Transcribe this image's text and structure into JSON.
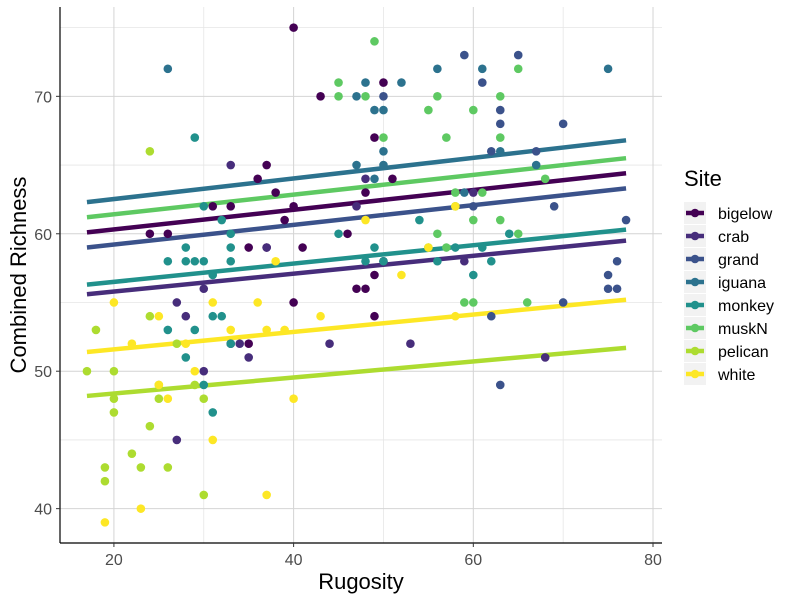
{
  "chart_data": {
    "type": "scatter",
    "title": "",
    "xlabel": "Rugosity",
    "ylabel": "Combined Richness",
    "xlim": [
      14,
      81
    ],
    "ylim": [
      37.5,
      76.5
    ],
    "xticks": [
      20,
      40,
      60,
      80
    ],
    "yticks": [
      40,
      50,
      60,
      70
    ],
    "grid": true,
    "legend": {
      "title": "Site",
      "position": "right"
    },
    "series": [
      {
        "name": "bigelow",
        "color": "#440154",
        "fit": {
          "x": [
            17,
            77
          ],
          "y": [
            60.1,
            64.4
          ]
        },
        "points": [
          [
            40,
            75
          ],
          [
            43,
            70
          ],
          [
            50,
            71
          ],
          [
            49,
            67
          ],
          [
            37,
            65
          ],
          [
            38,
            63
          ],
          [
            39,
            61
          ],
          [
            36,
            64
          ],
          [
            35,
            59
          ],
          [
            40,
            62
          ],
          [
            33,
            62
          ],
          [
            41,
            59
          ],
          [
            46,
            60
          ],
          [
            47,
            56
          ],
          [
            48,
            56
          ],
          [
            49,
            54
          ],
          [
            50,
            58
          ],
          [
            49,
            57
          ],
          [
            48,
            63
          ],
          [
            51,
            64
          ],
          [
            40,
            55
          ],
          [
            35,
            52
          ],
          [
            37,
            59
          ],
          [
            26,
            60
          ],
          [
            24,
            60
          ],
          [
            31,
            62
          ]
        ]
      },
      {
        "name": "crab",
        "color": "#472d7b",
        "fit": {
          "x": [
            17,
            77
          ],
          "y": [
            55.6,
            59.5
          ]
        },
        "points": [
          [
            27,
            45
          ],
          [
            27,
            55
          ],
          [
            28,
            54
          ],
          [
            30,
            50
          ],
          [
            30,
            56
          ],
          [
            33,
            52
          ],
          [
            34,
            52
          ],
          [
            35,
            51
          ],
          [
            37,
            59
          ],
          [
            33,
            65
          ],
          [
            44,
            52
          ],
          [
            47,
            62
          ],
          [
            48,
            64
          ],
          [
            53,
            52
          ],
          [
            59,
            58
          ],
          [
            60,
            63
          ],
          [
            68,
            51
          ]
        ]
      },
      {
        "name": "grand",
        "color": "#3b528b",
        "fit": {
          "x": [
            17,
            77
          ],
          "y": [
            59.0,
            63.3
          ]
        },
        "points": [
          [
            59,
            73
          ],
          [
            61,
            71
          ],
          [
            63,
            69
          ],
          [
            63,
            68
          ],
          [
            65,
            73
          ],
          [
            67,
            66
          ],
          [
            70,
            68
          ],
          [
            62,
            66
          ],
          [
            60,
            62
          ],
          [
            63,
            49
          ],
          [
            62,
            54
          ],
          [
            70,
            55
          ],
          [
            75,
            57
          ],
          [
            76,
            58
          ],
          [
            76,
            56
          ],
          [
            75,
            56
          ],
          [
            77,
            61
          ],
          [
            69,
            62
          ],
          [
            50,
            70
          ]
        ]
      },
      {
        "name": "iguana",
        "color": "#2c728e",
        "fit": {
          "x": [
            17,
            77
          ],
          "y": [
            62.3,
            66.8
          ]
        },
        "points": [
          [
            26,
            72
          ],
          [
            47,
            70
          ],
          [
            48,
            71
          ],
          [
            50,
            69
          ],
          [
            52,
            71
          ],
          [
            49,
            69
          ],
          [
            50,
            66
          ],
          [
            56,
            72
          ],
          [
            61,
            72
          ],
          [
            63,
            66
          ],
          [
            67,
            65
          ],
          [
            75,
            72
          ],
          [
            47,
            65
          ],
          [
            49,
            64
          ],
          [
            50,
            65
          ],
          [
            59,
            63
          ]
        ]
      },
      {
        "name": "monkey",
        "color": "#21918c",
        "fit": {
          "x": [
            17,
            77
          ],
          "y": [
            56.3,
            60.3
          ]
        },
        "points": [
          [
            29,
            67
          ],
          [
            26,
            53
          ],
          [
            26,
            58
          ],
          [
            28,
            59
          ],
          [
            28,
            58
          ],
          [
            29,
            58
          ],
          [
            30,
            58
          ],
          [
            28,
            51
          ],
          [
            29,
            53
          ],
          [
            30,
            49
          ],
          [
            31,
            47
          ],
          [
            31,
            54
          ],
          [
            32,
            54
          ],
          [
            33,
            60
          ],
          [
            33,
            58
          ],
          [
            33,
            59
          ],
          [
            31,
            57
          ],
          [
            30,
            62
          ],
          [
            32,
            61
          ],
          [
            33,
            52
          ],
          [
            45,
            60
          ],
          [
            50,
            58
          ],
          [
            54,
            61
          ],
          [
            58,
            59
          ],
          [
            61,
            59
          ],
          [
            56,
            58
          ],
          [
            60,
            57
          ],
          [
            64,
            60
          ],
          [
            62,
            58
          ],
          [
            48,
            58
          ],
          [
            49,
            59
          ]
        ]
      },
      {
        "name": "muskN",
        "color": "#5ec962",
        "fit": {
          "x": [
            17,
            77
          ],
          "y": [
            61.2,
            65.5
          ]
        },
        "points": [
          [
            49,
            74
          ],
          [
            45,
            71
          ],
          [
            45,
            70
          ],
          [
            48,
            70
          ],
          [
            50,
            67
          ],
          [
            55,
            69
          ],
          [
            56,
            70
          ],
          [
            57,
            67
          ],
          [
            60,
            69
          ],
          [
            63,
            70
          ],
          [
            63,
            67
          ],
          [
            65,
            72
          ],
          [
            61,
            63
          ],
          [
            58,
            63
          ],
          [
            59,
            55
          ],
          [
            60,
            55
          ],
          [
            65,
            60
          ],
          [
            66,
            55
          ],
          [
            68,
            64
          ],
          [
            60,
            61
          ],
          [
            63,
            61
          ],
          [
            57,
            59
          ],
          [
            58,
            62
          ],
          [
            55,
            59
          ],
          [
            56,
            60
          ]
        ]
      },
      {
        "name": "pelican",
        "color": "#addc30",
        "fit": {
          "x": [
            17,
            77
          ],
          "y": [
            48.2,
            51.7
          ]
        },
        "points": [
          [
            24,
            66
          ],
          [
            17,
            50
          ],
          [
            18,
            53
          ],
          [
            19,
            42
          ],
          [
            19,
            43
          ],
          [
            20,
            48
          ],
          [
            20,
            47
          ],
          [
            20,
            50
          ],
          [
            22,
            44
          ],
          [
            23,
            43
          ],
          [
            24,
            46
          ],
          [
            24,
            54
          ],
          [
            25,
            48
          ],
          [
            25,
            49
          ],
          [
            26,
            43
          ],
          [
            27,
            52
          ],
          [
            29,
            49
          ],
          [
            30,
            48
          ],
          [
            30,
            41
          ]
        ]
      },
      {
        "name": "white",
        "color": "#fde725",
        "fit": {
          "x": [
            17,
            77
          ],
          "y": [
            51.4,
            55.2
          ]
        },
        "points": [
          [
            19,
            39
          ],
          [
            20,
            55
          ],
          [
            22,
            52
          ],
          [
            23,
            40
          ],
          [
            25,
            54
          ],
          [
            25,
            49
          ],
          [
            26,
            48
          ],
          [
            28,
            52
          ],
          [
            29,
            50
          ],
          [
            31,
            45
          ],
          [
            31,
            55
          ],
          [
            33,
            53
          ],
          [
            36,
            55
          ],
          [
            37,
            53
          ],
          [
            37,
            41
          ],
          [
            38,
            58
          ],
          [
            39,
            53
          ],
          [
            40,
            48
          ],
          [
            43,
            54
          ],
          [
            48,
            61
          ],
          [
            52,
            57
          ],
          [
            55,
            59
          ],
          [
            58,
            54
          ],
          [
            58,
            62
          ]
        ]
      }
    ]
  }
}
